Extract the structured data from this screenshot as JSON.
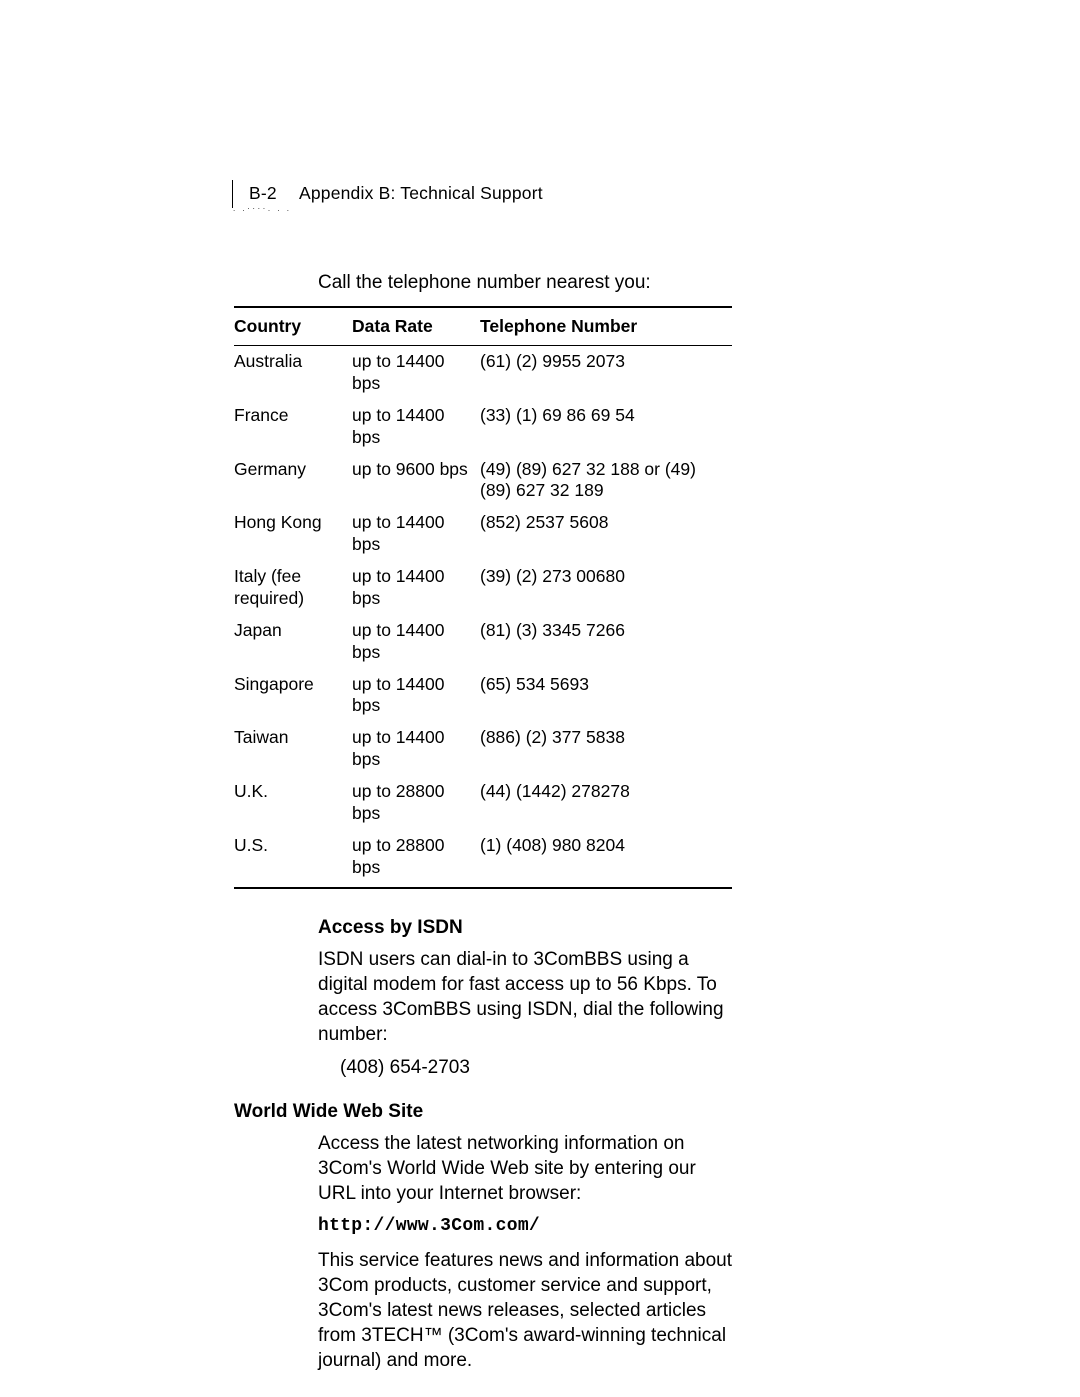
{
  "header": {
    "page_number": "B-2",
    "title": "Appendix B: Technical Support"
  },
  "intro_line": "Call the telephone number nearest you:",
  "table": {
    "columns": [
      "Country",
      "Data Rate",
      "Telephone Number"
    ],
    "rows": [
      {
        "country": "Australia",
        "rate": "up to 14400 bps",
        "phone": "(61) (2) 9955 2073"
      },
      {
        "country": "France",
        "rate": "up to 14400 bps",
        "phone": "(33) (1) 69 86 69 54"
      },
      {
        "country": "Germany",
        "rate": "up to 9600 bps",
        "phone": "(49) (89) 627 32 188 or (49) (89) 627 32 189"
      },
      {
        "country": "Hong Kong",
        "rate": "up to 14400 bps",
        "phone": "(852) 2537 5608"
      },
      {
        "country": "Italy (fee required)",
        "rate": "up to 14400 bps",
        "phone": "(39) (2) 273 00680"
      },
      {
        "country": "Japan",
        "rate": "up to 14400 bps",
        "phone": "(81) (3) 3345 7266"
      },
      {
        "country": "Singapore",
        "rate": "up to 14400 bps",
        "phone": "(65) 534 5693"
      },
      {
        "country": "Taiwan",
        "rate": "up to 14400 bps",
        "phone": "(886) (2) 377 5838"
      },
      {
        "country": "U.K.",
        "rate": "up to 28800 bps",
        "phone": "(44) (1442) 278278"
      },
      {
        "country": "U.S.",
        "rate": "up to 28800 bps",
        "phone": "(1) (408) 980 8204"
      }
    ]
  },
  "isdn": {
    "heading": "Access by ISDN",
    "body": "ISDN users can dial-in to 3ComBBS using a digital modem for fast access up to 56 Kbps. To access 3ComBBS using ISDN, dial the following number:",
    "phone": "(408) 654-2703"
  },
  "www": {
    "heading": "World Wide Web Site",
    "body1": "Access the latest networking information on 3Com's World Wide Web site by entering our URL into your Internet browser:",
    "url": "http://www.3Com.com/",
    "body2": "This service features news and information about 3Com products, customer service and support, 3Com's latest news releases, selected articles from 3TECH™ (3Com's award-winning technical journal) and more."
  }
}
